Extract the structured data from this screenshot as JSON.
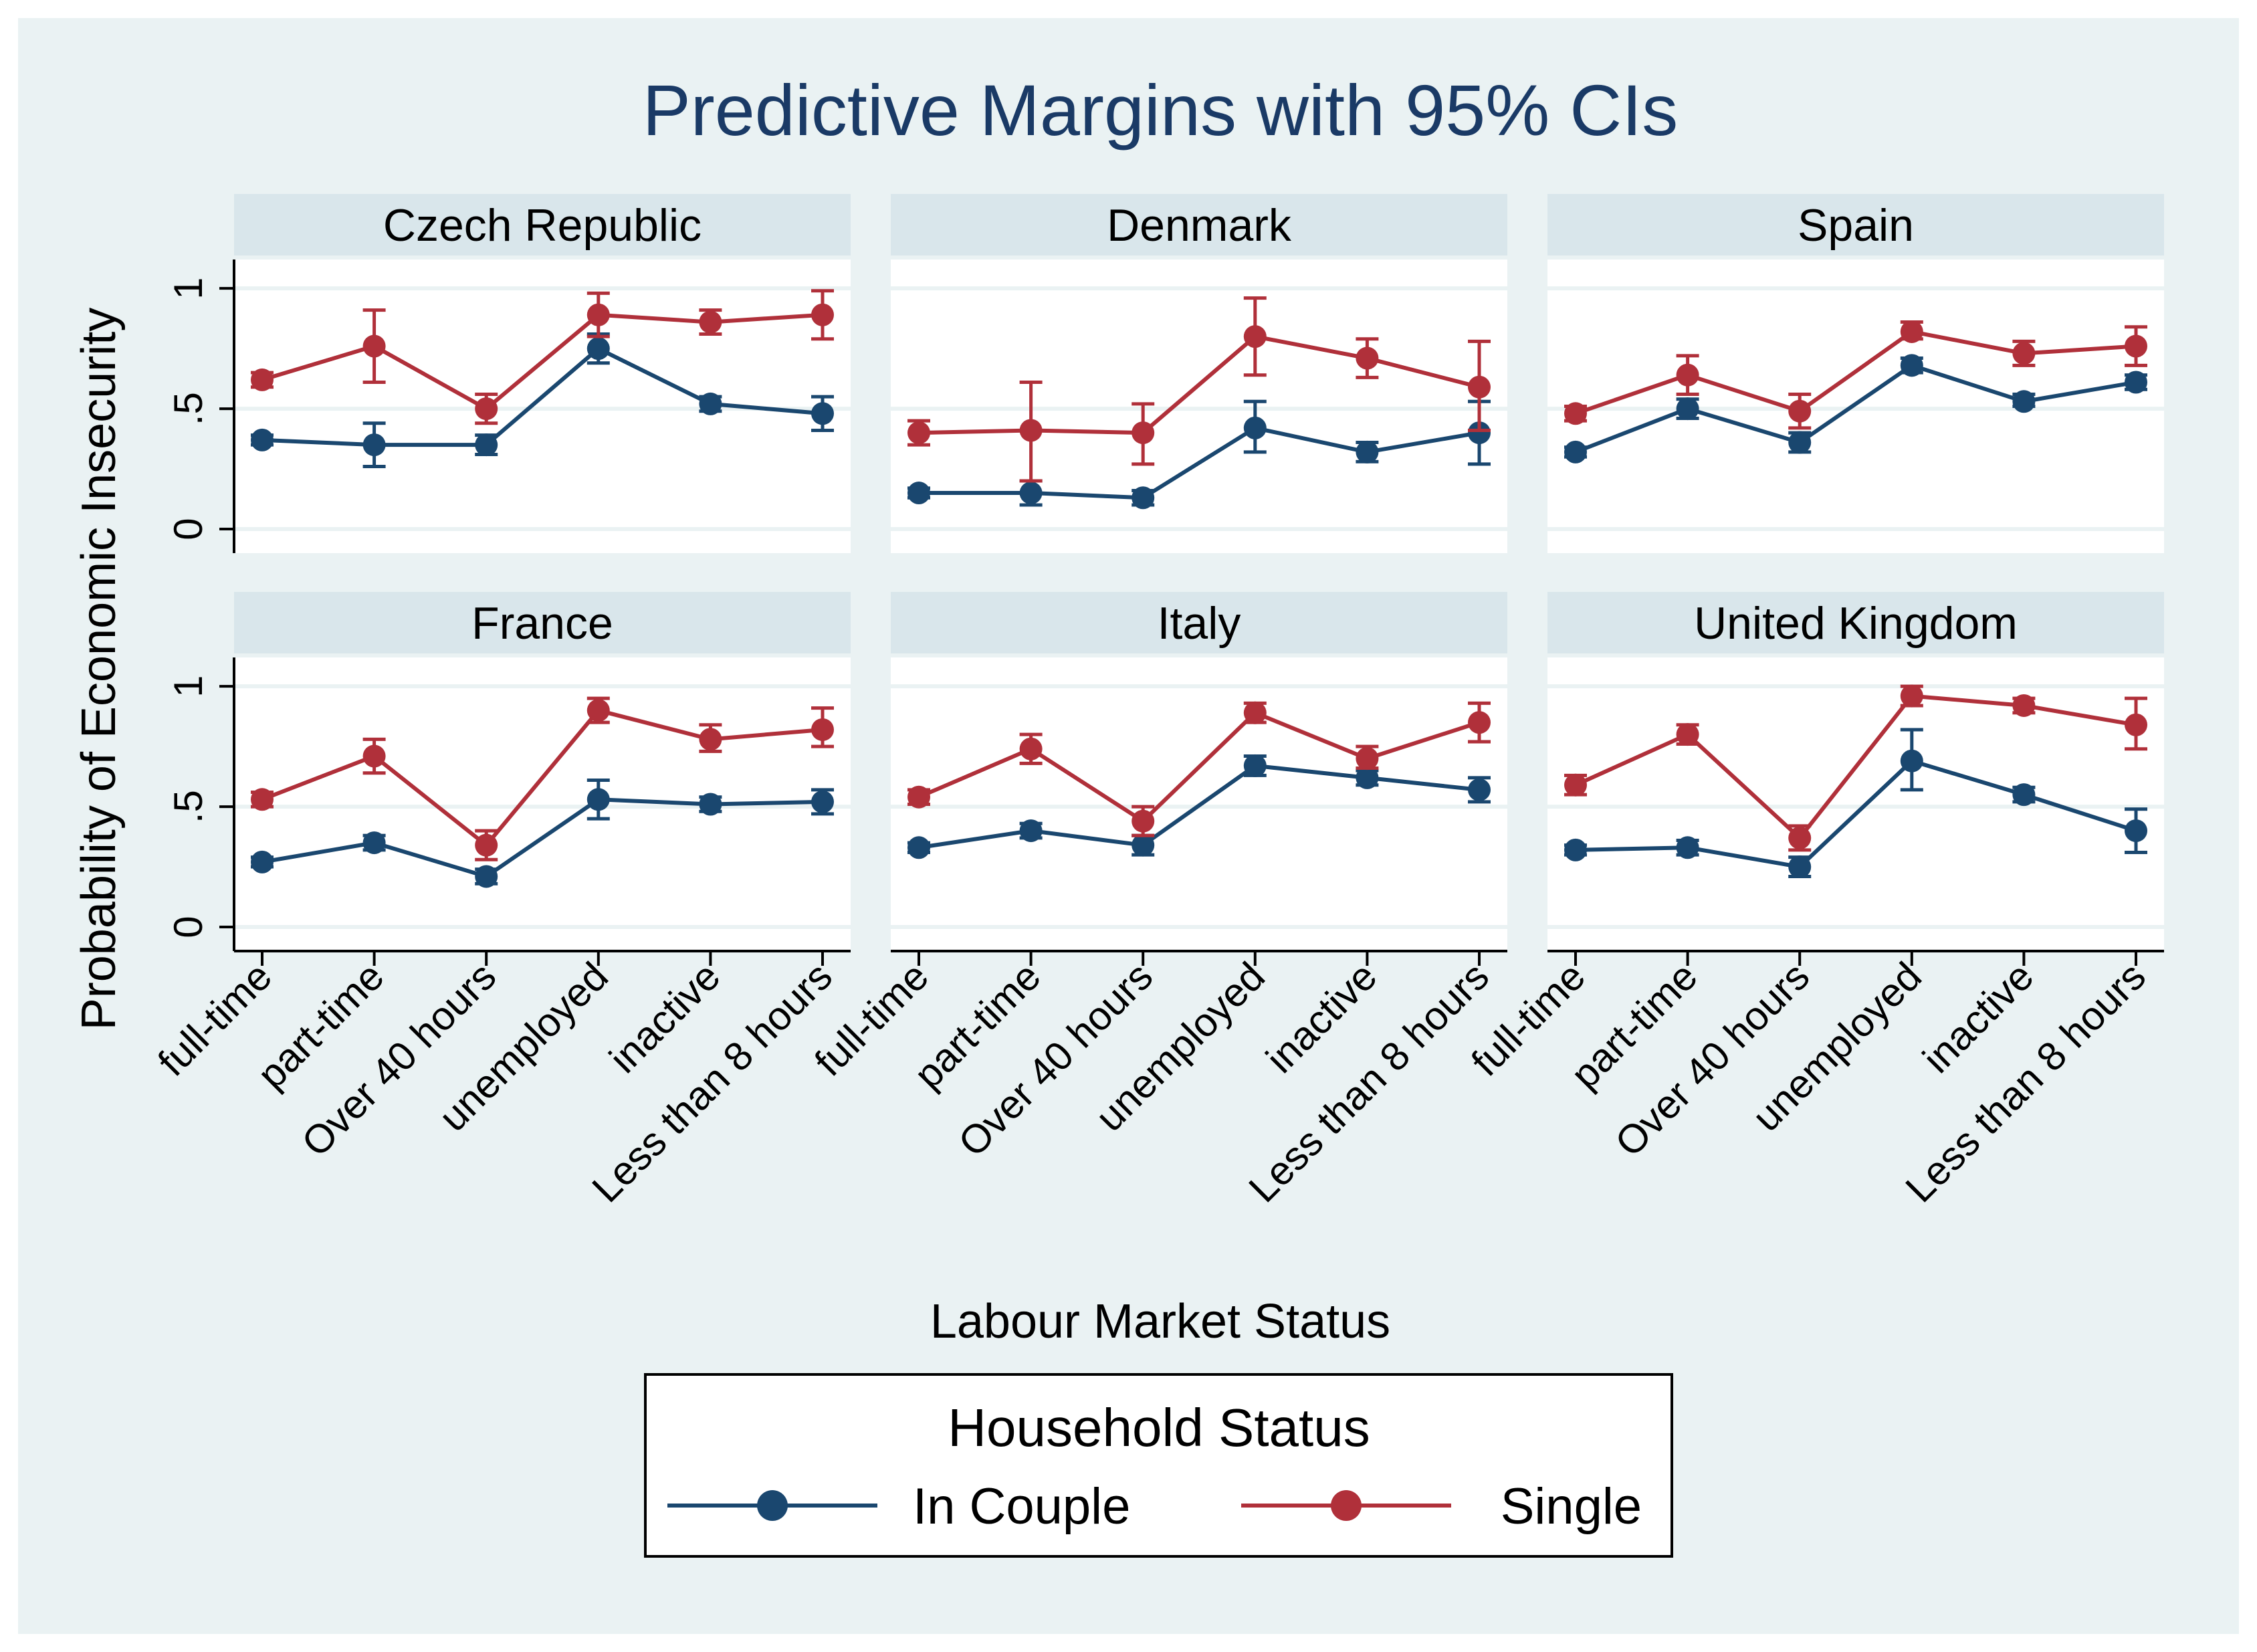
{
  "chart_data": {
    "type": "line",
    "title": "Predictive Margins with 95% CIs",
    "xlabel": "Labour Market Status",
    "ylabel": "Probability of Economic Insecurity",
    "categories": [
      "full-time",
      "part-time",
      "Over 40 hours",
      "unemployed",
      "inactive",
      "Less than 8 hours"
    ],
    "yticks": [
      {
        "value": 0,
        "label": "0"
      },
      {
        "value": 0.5,
        "label": ".5"
      },
      {
        "value": 1,
        "label": "1"
      }
    ],
    "ylim": [
      -0.1,
      1.12
    ],
    "grid": true,
    "legend": {
      "title": "Household Status",
      "placement": "bottom",
      "entries": [
        "In Couple",
        "Single"
      ]
    },
    "colors": {
      "In Couple": "#1a476f",
      "Single": "#b0303a",
      "outer_background": "#eaf2f3",
      "plot_background": "#ffffff",
      "strip_background": "#d9e6eb",
      "title": "#1a3a66",
      "gridline": "#eaf2f3"
    },
    "panels": [
      {
        "name": "Czech Republic",
        "series": [
          {
            "name": "In Couple",
            "values": [
              0.37,
              0.35,
              0.35,
              0.75,
              0.52,
              0.48
            ],
            "ci_low": [
              0.35,
              0.26,
              0.31,
              0.69,
              0.49,
              0.41
            ],
            "ci_high": [
              0.39,
              0.44,
              0.39,
              0.81,
              0.55,
              0.55
            ]
          },
          {
            "name": "Single",
            "values": [
              0.62,
              0.76,
              0.5,
              0.89,
              0.86,
              0.89
            ],
            "ci_low": [
              0.59,
              0.61,
              0.44,
              0.8,
              0.81,
              0.79
            ],
            "ci_high": [
              0.65,
              0.91,
              0.56,
              0.98,
              0.91,
              0.99
            ]
          }
        ]
      },
      {
        "name": "Denmark",
        "series": [
          {
            "name": "In Couple",
            "values": [
              0.15,
              0.15,
              0.13,
              0.42,
              0.32,
              0.4
            ],
            "ci_low": [
              0.13,
              0.1,
              0.1,
              0.32,
              0.28,
              0.27
            ],
            "ci_high": [
              0.17,
              0.2,
              0.16,
              0.53,
              0.36,
              0.53
            ]
          },
          {
            "name": "Single",
            "values": [
              0.4,
              0.41,
              0.4,
              0.8,
              0.71,
              0.59
            ],
            "ci_low": [
              0.35,
              0.2,
              0.27,
              0.64,
              0.63,
              0.41
            ],
            "ci_high": [
              0.45,
              0.61,
              0.52,
              0.96,
              0.79,
              0.78
            ]
          }
        ]
      },
      {
        "name": "Spain",
        "series": [
          {
            "name": "In Couple",
            "values": [
              0.32,
              0.5,
              0.36,
              0.68,
              0.53,
              0.61
            ],
            "ci_low": [
              0.3,
              0.46,
              0.32,
              0.65,
              0.51,
              0.58
            ],
            "ci_high": [
              0.34,
              0.54,
              0.4,
              0.71,
              0.56,
              0.64
            ]
          },
          {
            "name": "Single",
            "values": [
              0.48,
              0.64,
              0.49,
              0.82,
              0.73,
              0.76
            ],
            "ci_low": [
              0.45,
              0.56,
              0.42,
              0.79,
              0.68,
              0.68
            ],
            "ci_high": [
              0.51,
              0.72,
              0.56,
              0.86,
              0.78,
              0.84
            ]
          }
        ]
      },
      {
        "name": "France",
        "series": [
          {
            "name": "In Couple",
            "values": [
              0.27,
              0.35,
              0.21,
              0.53,
              0.51,
              0.52
            ],
            "ci_low": [
              0.25,
              0.32,
              0.18,
              0.45,
              0.48,
              0.47
            ],
            "ci_high": [
              0.29,
              0.38,
              0.24,
              0.61,
              0.54,
              0.57
            ]
          },
          {
            "name": "Single",
            "values": [
              0.53,
              0.71,
              0.34,
              0.9,
              0.78,
              0.82
            ],
            "ci_low": [
              0.5,
              0.64,
              0.28,
              0.85,
              0.73,
              0.75
            ],
            "ci_high": [
              0.56,
              0.78,
              0.4,
              0.95,
              0.84,
              0.91
            ]
          }
        ]
      },
      {
        "name": "Italy",
        "series": [
          {
            "name": "In Couple",
            "values": [
              0.33,
              0.4,
              0.34,
              0.67,
              0.62,
              0.57
            ],
            "ci_low": [
              0.31,
              0.37,
              0.3,
              0.63,
              0.59,
              0.52
            ],
            "ci_high": [
              0.35,
              0.43,
              0.38,
              0.71,
              0.65,
              0.62
            ]
          },
          {
            "name": "Single",
            "values": [
              0.54,
              0.74,
              0.44,
              0.89,
              0.7,
              0.85
            ],
            "ci_low": [
              0.51,
              0.68,
              0.38,
              0.85,
              0.66,
              0.77
            ],
            "ci_high": [
              0.57,
              0.8,
              0.5,
              0.93,
              0.75,
              0.93
            ]
          }
        ]
      },
      {
        "name": "United Kingdom",
        "series": [
          {
            "name": "In Couple",
            "values": [
              0.32,
              0.33,
              0.25,
              0.69,
              0.55,
              0.4
            ],
            "ci_low": [
              0.3,
              0.3,
              0.21,
              0.57,
              0.52,
              0.31
            ],
            "ci_high": [
              0.34,
              0.36,
              0.29,
              0.82,
              0.58,
              0.49
            ]
          },
          {
            "name": "Single",
            "values": [
              0.59,
              0.8,
              0.37,
              0.96,
              0.92,
              0.84
            ],
            "ci_low": [
              0.55,
              0.76,
              0.32,
              0.92,
              0.89,
              0.74
            ],
            "ci_high": [
              0.63,
              0.84,
              0.42,
              1.0,
              0.95,
              0.95
            ]
          }
        ]
      }
    ]
  }
}
